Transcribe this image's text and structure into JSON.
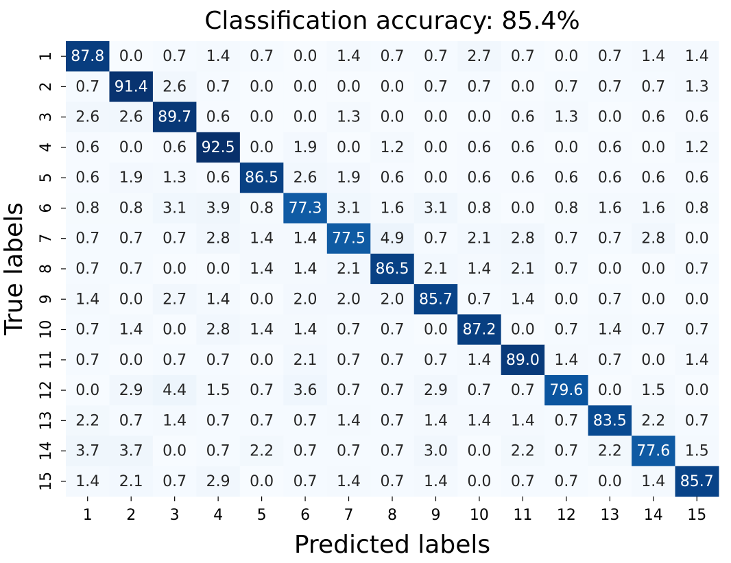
{
  "chart_data": {
    "type": "heatmap",
    "title": "Classification accuracy: 85.4%",
    "xlabel": "Predicted labels",
    "ylabel": "True labels",
    "colormap": "Blues",
    "x": [
      "1",
      "2",
      "3",
      "4",
      "5",
      "6",
      "7",
      "8",
      "9",
      "10",
      "11",
      "12",
      "13",
      "14",
      "15"
    ],
    "y": [
      "1",
      "2",
      "3",
      "4",
      "5",
      "6",
      "7",
      "8",
      "9",
      "10",
      "11",
      "12",
      "13",
      "14",
      "15"
    ],
    "values": [
      [
        87.8,
        0,
        0.7,
        1.4,
        0.7,
        0,
        1.4,
        0.7,
        0.7,
        2.7,
        0.7,
        0,
        0.7,
        1.4,
        1.4
      ],
      [
        0.7,
        91.4,
        2.6,
        0.7,
        0,
        0,
        0,
        0,
        0.7,
        0.7,
        0,
        0.7,
        0.7,
        0.7,
        1.3
      ],
      [
        2.6,
        2.6,
        89.7,
        0.6,
        0,
        0,
        1.3,
        0,
        0,
        0,
        0.6,
        1.3,
        0,
        0.6,
        0.6
      ],
      [
        0.6,
        0,
        0.6,
        92.5,
        0,
        1.9,
        0,
        1.2,
        0,
        0.6,
        0.6,
        0,
        0.6,
        0,
        1.2
      ],
      [
        0.6,
        1.9,
        1.3,
        0.6,
        86.5,
        2.6,
        1.9,
        0.6,
        0,
        0.6,
        0.6,
        0.6,
        0.6,
        0.6,
        0.6
      ],
      [
        0.8,
        0.8,
        3.1,
        3.9,
        0.8,
        77.3,
        3.1,
        1.6,
        3.1,
        0.8,
        0,
        0.8,
        1.6,
        1.6,
        0.8
      ],
      [
        0.7,
        0.7,
        0.7,
        2.8,
        1.4,
        1.4,
        77.5,
        4.9,
        0.7,
        2.1,
        2.8,
        0.7,
        0.7,
        2.8,
        0
      ],
      [
        0.7,
        0.7,
        0,
        0,
        1.4,
        1.4,
        2.1,
        86.5,
        2.1,
        1.4,
        2.1,
        0.7,
        0,
        0,
        0.7
      ],
      [
        1.4,
        0,
        2.7,
        1.4,
        0,
        2,
        2,
        2,
        85.7,
        0.7,
        1.4,
        0,
        0.7,
        0,
        0
      ],
      [
        0.7,
        1.4,
        0,
        2.8,
        1.4,
        1.4,
        0.7,
        0.7,
        0,
        87.2,
        0,
        0.7,
        1.4,
        0.7,
        0.7
      ],
      [
        0.7,
        0,
        0.7,
        0.7,
        0,
        2.1,
        0.7,
        0.7,
        0.7,
        1.4,
        89,
        1.4,
        0.7,
        0,
        1.4
      ],
      [
        0,
        2.9,
        4.4,
        1.5,
        0.7,
        3.6,
        0.7,
        0.7,
        2.9,
        0.7,
        0.7,
        79.6,
        0,
        1.5,
        0
      ],
      [
        2.2,
        0.7,
        1.4,
        0.7,
        0.7,
        0.7,
        1.4,
        0.7,
        1.4,
        1.4,
        1.4,
        0.7,
        83.5,
        2.2,
        0.7
      ],
      [
        3.7,
        3.7,
        0,
        0.7,
        2.2,
        0.7,
        0.7,
        0.7,
        3,
        0,
        2.2,
        0.7,
        2.2,
        77.6,
        1.5
      ],
      [
        1.4,
        2.1,
        0.7,
        2.9,
        0,
        0.7,
        1.4,
        0.7,
        1.4,
        0,
        0.7,
        0.7,
        0,
        1.4,
        85.7
      ]
    ],
    "value_labels": [
      [
        "87.8",
        "0.0",
        "0.7",
        "1.4",
        "0.7",
        "0.0",
        "1.4",
        "0.7",
        "0.7",
        "2.7",
        "0.7",
        "0.0",
        "0.7",
        "1.4",
        "1.4"
      ],
      [
        "0.7",
        "91.4",
        "2.6",
        "0.7",
        "0.0",
        "0.0",
        "0.0",
        "0.0",
        "0.7",
        "0.7",
        "0.0",
        "0.7",
        "0.7",
        "0.7",
        "1.3"
      ],
      [
        "2.6",
        "2.6",
        "89.7",
        "0.6",
        "0.0",
        "0.0",
        "1.3",
        "0.0",
        "0.0",
        "0.0",
        "0.6",
        "1.3",
        "0.0",
        "0.6",
        "0.6"
      ],
      [
        "0.6",
        "0.0",
        "0.6",
        "92.5",
        "0.0",
        "1.9",
        "0.0",
        "1.2",
        "0.0",
        "0.6",
        "0.6",
        "0.0",
        "0.6",
        "0.0",
        "1.2"
      ],
      [
        "0.6",
        "1.9",
        "1.3",
        "0.6",
        "86.5",
        "2.6",
        "1.9",
        "0.6",
        "0.0",
        "0.6",
        "0.6",
        "0.6",
        "0.6",
        "0.6",
        "0.6"
      ],
      [
        "0.8",
        "0.8",
        "3.1",
        "3.9",
        "0.8",
        "77.3",
        "3.1",
        "1.6",
        "3.1",
        "0.8",
        "0.0",
        "0.8",
        "1.6",
        "1.6",
        "0.8"
      ],
      [
        "0.7",
        "0.7",
        "0.7",
        "2.8",
        "1.4",
        "1.4",
        "77.5",
        "4.9",
        "0.7",
        "2.1",
        "2.8",
        "0.7",
        "0.7",
        "2.8",
        "0.0"
      ],
      [
        "0.7",
        "0.7",
        "0.0",
        "0.0",
        "1.4",
        "1.4",
        "2.1",
        "86.5",
        "2.1",
        "1.4",
        "2.1",
        "0.7",
        "0.0",
        "0.0",
        "0.7"
      ],
      [
        "1.4",
        "0.0",
        "2.7",
        "1.4",
        "0.0",
        "2.0",
        "2.0",
        "2.0",
        "85.7",
        "0.7",
        "1.4",
        "0.0",
        "0.7",
        "0.0",
        "0.0"
      ],
      [
        "0.7",
        "1.4",
        "0.0",
        "2.8",
        "1.4",
        "1.4",
        "0.7",
        "0.7",
        "0.0",
        "87.2",
        "0.0",
        "0.7",
        "1.4",
        "0.7",
        "0.7"
      ],
      [
        "0.7",
        "0.0",
        "0.7",
        "0.7",
        "0.0",
        "2.1",
        "0.7",
        "0.7",
        "0.7",
        "1.4",
        "89.0",
        "1.4",
        "0.7",
        "0.0",
        "1.4"
      ],
      [
        "0.0",
        "2.9",
        "4.4",
        "1.5",
        "0.7",
        "3.6",
        "0.7",
        "0.7",
        "2.9",
        "0.7",
        "0.7",
        "79.6",
        "0.0",
        "1.5",
        "0.0"
      ],
      [
        "2.2",
        "0.7",
        "1.4",
        "0.7",
        "0.7",
        "0.7",
        "1.4",
        "0.7",
        "1.4",
        "1.4",
        "1.4",
        "0.7",
        "83.5",
        "2.2",
        "0.7"
      ],
      [
        "3.7",
        "3.7",
        "0.0",
        "0.7",
        "2.2",
        "0.7",
        "0.7",
        "0.7",
        "3.0",
        "0.0",
        "2.2",
        "0.7",
        "2.2",
        "77.6",
        "1.5"
      ],
      [
        "1.4",
        "2.1",
        "0.7",
        "2.9",
        "0.0",
        "0.7",
        "1.4",
        "0.7",
        "1.4",
        "0.0",
        "0.7",
        "0.7",
        "0.0",
        "1.4",
        "85.7"
      ]
    ]
  }
}
